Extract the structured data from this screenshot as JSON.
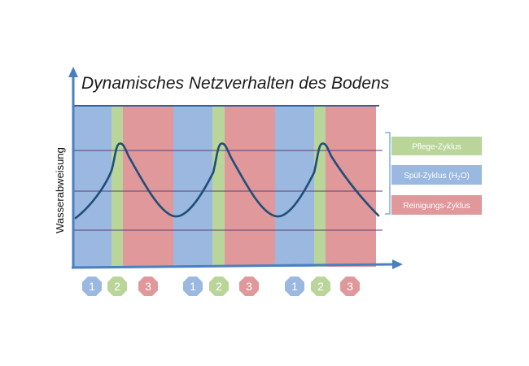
{
  "title": "Dynamisches Netzverhalten des Bodens",
  "y_axis_label": "Wasserabweisung",
  "phases": [
    {
      "id": 1,
      "label": "1",
      "color": "#9ab8e0"
    },
    {
      "id": 2,
      "label": "2",
      "color": "#b9d59a"
    },
    {
      "id": 3,
      "label": "3",
      "color": "#e0989a"
    }
  ],
  "cycles": 3,
  "legend": {
    "pflege": {
      "text": "Pflege-Zyklus",
      "color": "#b9d59a"
    },
    "spuel": {
      "text_main": "Spül-Zyklus (H",
      "text_sub": "2",
      "text_end": "O)",
      "color": "#9ab8e0"
    },
    "reinigung": {
      "text": "Reinigungs-Zyklus",
      "color": "#e0989a"
    }
  },
  "colors": {
    "axis": "#4a7fc0",
    "curve": "#1f4e79",
    "gridline": "#5a3f70",
    "topline": "#2e5f9e",
    "bracket": "#7fb0dc"
  }
}
